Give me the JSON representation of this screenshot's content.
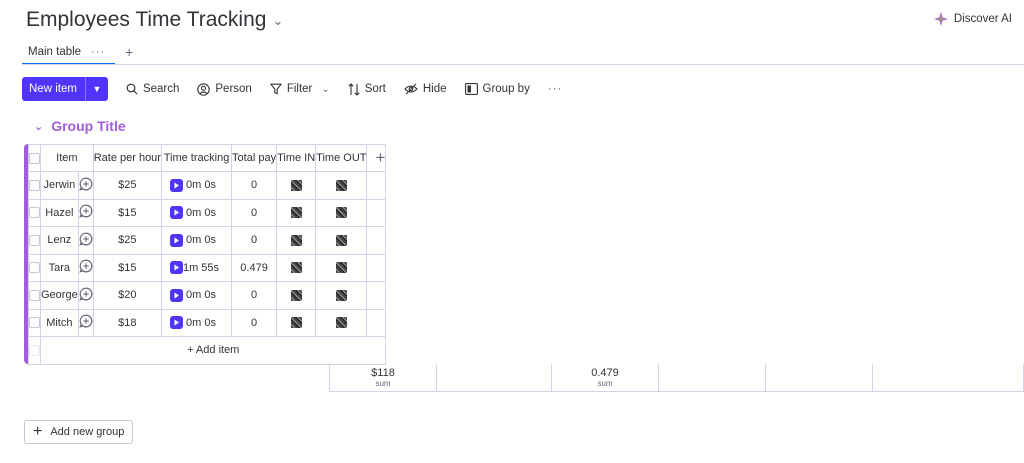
{
  "header": {
    "title": "Employees Time Tracking",
    "discover_label": "Discover AI"
  },
  "tabs": {
    "main_label": "Main table",
    "more": "···",
    "add": "+"
  },
  "toolbar": {
    "new_item_label": "New item",
    "search_label": "Search",
    "person_label": "Person",
    "filter_label": "Filter",
    "sort_label": "Sort",
    "hide_label": "Hide",
    "group_by_label": "Group by",
    "more": "···"
  },
  "group": {
    "title": "Group Title",
    "color": "#a25ddc"
  },
  "table": {
    "columns": {
      "item": "Item",
      "rate": "Rate per hour",
      "time_tracking": "Time tracking",
      "total_pay": "Total pay",
      "time_in": "Time IN",
      "time_out": "Time OUT",
      "add": "+"
    },
    "rows": [
      {
        "name": "Jerwin",
        "rate": "$25",
        "time": "0m 0s",
        "pay": "0"
      },
      {
        "name": "Hazel",
        "rate": "$15",
        "time": "0m 0s",
        "pay": "0"
      },
      {
        "name": "Lenz",
        "rate": "$25",
        "time": "0m 0s",
        "pay": "0"
      },
      {
        "name": "Tara",
        "rate": "$15",
        "time": "1m 55s",
        "pay": "0.479"
      },
      {
        "name": "George",
        "rate": "$20",
        "time": "0m 0s",
        "pay": "0"
      },
      {
        "name": "Mitch",
        "rate": "$18",
        "time": "0m 0s",
        "pay": "0"
      }
    ],
    "add_item_label": "+ Add item",
    "summary": {
      "rate_sum": "$118",
      "rate_sub": "sum",
      "pay_sum": "0.479",
      "pay_sub": "sum"
    }
  },
  "add_group_label": "Add new group",
  "colors": {
    "accent": "#5034ff",
    "tab_underline": "#0073ea"
  }
}
